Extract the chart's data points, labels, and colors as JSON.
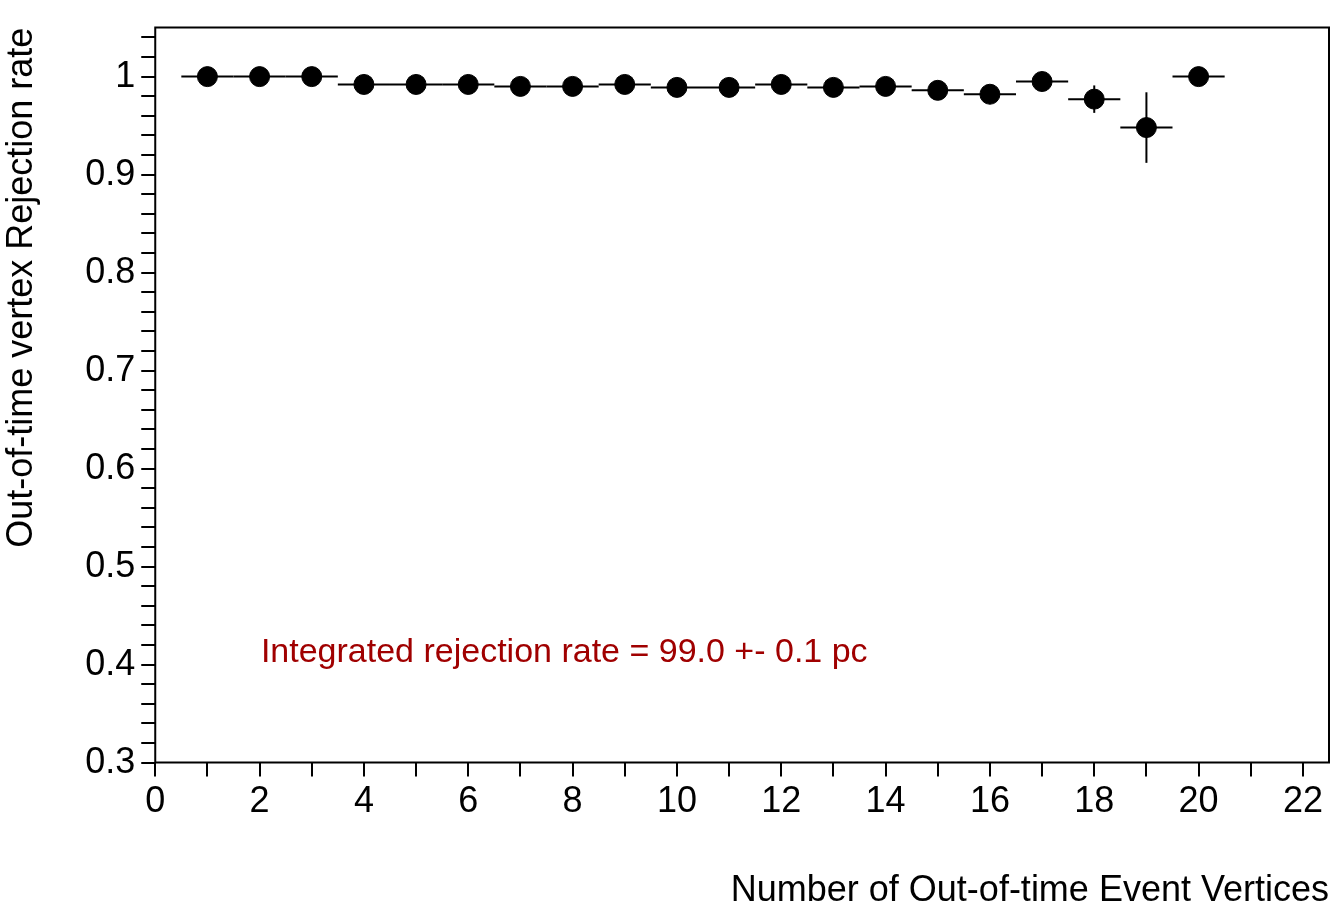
{
  "chart_data": {
    "type": "scatter",
    "xlabel": "Number of Out-of-time Event Vertices",
    "ylabel": "Out-of-time vertex Rejection rate",
    "annotations": [
      "Integrated rejection rate = 99.0 +- 0.1 pc"
    ],
    "x": [
      1,
      2,
      3,
      4,
      5,
      6,
      7,
      8,
      9,
      10,
      11,
      12,
      13,
      14,
      15,
      16,
      17,
      18,
      19,
      20
    ],
    "series": [
      {
        "color": "#000000",
        "values": [
          1.0,
          1.0,
          1.0,
          0.992,
          0.992,
          0.992,
          0.99,
          0.99,
          0.992,
          0.989,
          0.989,
          0.992,
          0.989,
          0.99,
          0.986,
          0.982,
          0.995,
          0.977,
          0.948,
          1.0
        ],
        "errors": [
          null,
          null,
          null,
          null,
          null,
          null,
          null,
          null,
          null,
          null,
          null,
          null,
          null,
          null,
          null,
          null,
          null,
          0.014,
          0.036,
          null
        ],
        "xerrors": [
          0.5,
          0.5,
          0.5,
          0.5,
          0.5,
          0.5,
          0.5,
          0.5,
          0.5,
          0.5,
          0.5,
          0.5,
          0.5,
          0.5,
          0.5,
          0.5,
          0.5,
          0.5,
          0.5,
          0.5
        ]
      }
    ],
    "xlim": [
      0,
      22.5
    ],
    "ylim": [
      0.3,
      1.05
    ],
    "xticks": [
      0,
      {
        "value": 1,
        "label": null
      },
      2,
      {
        "value": 3,
        "label": null
      },
      4,
      {
        "value": 5,
        "label": null
      },
      6,
      {
        "value": 7,
        "label": null
      },
      8,
      {
        "value": 9,
        "label": null
      },
      10,
      {
        "value": 11,
        "label": null
      },
      12,
      {
        "value": 13,
        "label": null
      },
      14,
      {
        "value": 15,
        "label": null
      },
      16,
      {
        "value": 17,
        "label": null
      },
      18,
      {
        "value": 19,
        "label": null
      },
      20,
      {
        "value": 21,
        "label": null
      },
      22
    ],
    "yticks": [
      0.3,
      {
        "value": 0.32,
        "label": null
      },
      {
        "value": 0.34,
        "label": null
      },
      {
        "value": 0.36,
        "label": null
      },
      {
        "value": 0.38,
        "label": null
      },
      0.4,
      {
        "value": 0.42,
        "label": null
      },
      {
        "value": 0.44,
        "label": null
      },
      {
        "value": 0.46,
        "label": null
      },
      {
        "value": 0.48,
        "label": null
      },
      0.5,
      {
        "value": 0.52,
        "label": null
      },
      {
        "value": 0.54,
        "label": null
      },
      {
        "value": 0.56,
        "label": null
      },
      {
        "value": 0.58,
        "label": null
      },
      0.6,
      {
        "value": 0.62,
        "label": null
      },
      {
        "value": 0.64,
        "label": null
      },
      {
        "value": 0.66,
        "label": null
      },
      {
        "value": 0.68,
        "label": null
      },
      0.7,
      {
        "value": 0.72,
        "label": null
      },
      {
        "value": 0.74,
        "label": null
      },
      {
        "value": 0.76,
        "label": null
      },
      {
        "value": 0.78,
        "label": null
      },
      0.8,
      {
        "value": 0.82,
        "label": null
      },
      {
        "value": 0.84,
        "label": null
      },
      {
        "value": 0.86,
        "label": null
      },
      {
        "value": 0.88,
        "label": null
      },
      0.9,
      {
        "value": 0.92,
        "label": null
      },
      {
        "value": 0.94,
        "label": null
      },
      {
        "value": 0.96,
        "label": null
      },
      {
        "value": 0.98,
        "label": null
      },
      1,
      {
        "value": 1.02,
        "label": null
      },
      {
        "value": 1.04,
        "label": null
      }
    ],
    "grid": false,
    "legend": false,
    "marker": "circle"
  }
}
